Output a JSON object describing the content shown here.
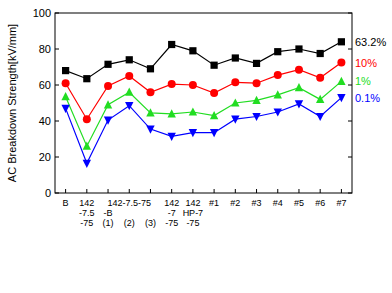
{
  "chart_data": {
    "type": "line",
    "y_label": "AC Breakdown Strength[kV/mm]",
    "categories": [
      "B",
      "142\n-7.5\n-75",
      "(1)",
      "(2)",
      "(3)",
      "142\n-7\n-75",
      "142\nHP-7\n-75",
      "#1",
      "#2",
      "#3",
      "#4",
      "#5",
      "#6",
      "#7"
    ],
    "annotations": [
      "142-7.5-75",
      "-B"
    ],
    "series": [
      {
        "name": "63.2%",
        "color": "#000000",
        "marker": "square",
        "values": [
          68,
          63.5,
          71.5,
          74,
          69,
          82.5,
          79,
          71,
          75,
          72,
          78.5,
          80,
          77.5,
          84
        ]
      },
      {
        "name": "10%",
        "color": "#ff0000",
        "marker": "circle",
        "values": [
          61,
          41,
          59.5,
          65,
          56,
          60.5,
          60,
          55.5,
          61.5,
          61,
          65.5,
          68.5,
          64,
          72.5
        ]
      },
      {
        "name": "1%",
        "color": "#22dd22",
        "marker": "triangle",
        "values": [
          53.5,
          26,
          49,
          56,
          44.5,
          44,
          45,
          43,
          50,
          51.5,
          54.5,
          58.5,
          52,
          62
        ]
      },
      {
        "name": "0.1%",
        "color": "#0000ff",
        "marker": "triangle-down",
        "values": [
          47,
          16.5,
          40.5,
          48.5,
          35.5,
          31.5,
          33.5,
          33.5,
          41,
          42.5,
          45,
          49.5,
          42.5,
          53
        ]
      }
    ],
    "ylim": [
      0,
      100
    ],
    "yticks": [
      0,
      20,
      40,
      60,
      80,
      100
    ],
    "grid": false
  }
}
